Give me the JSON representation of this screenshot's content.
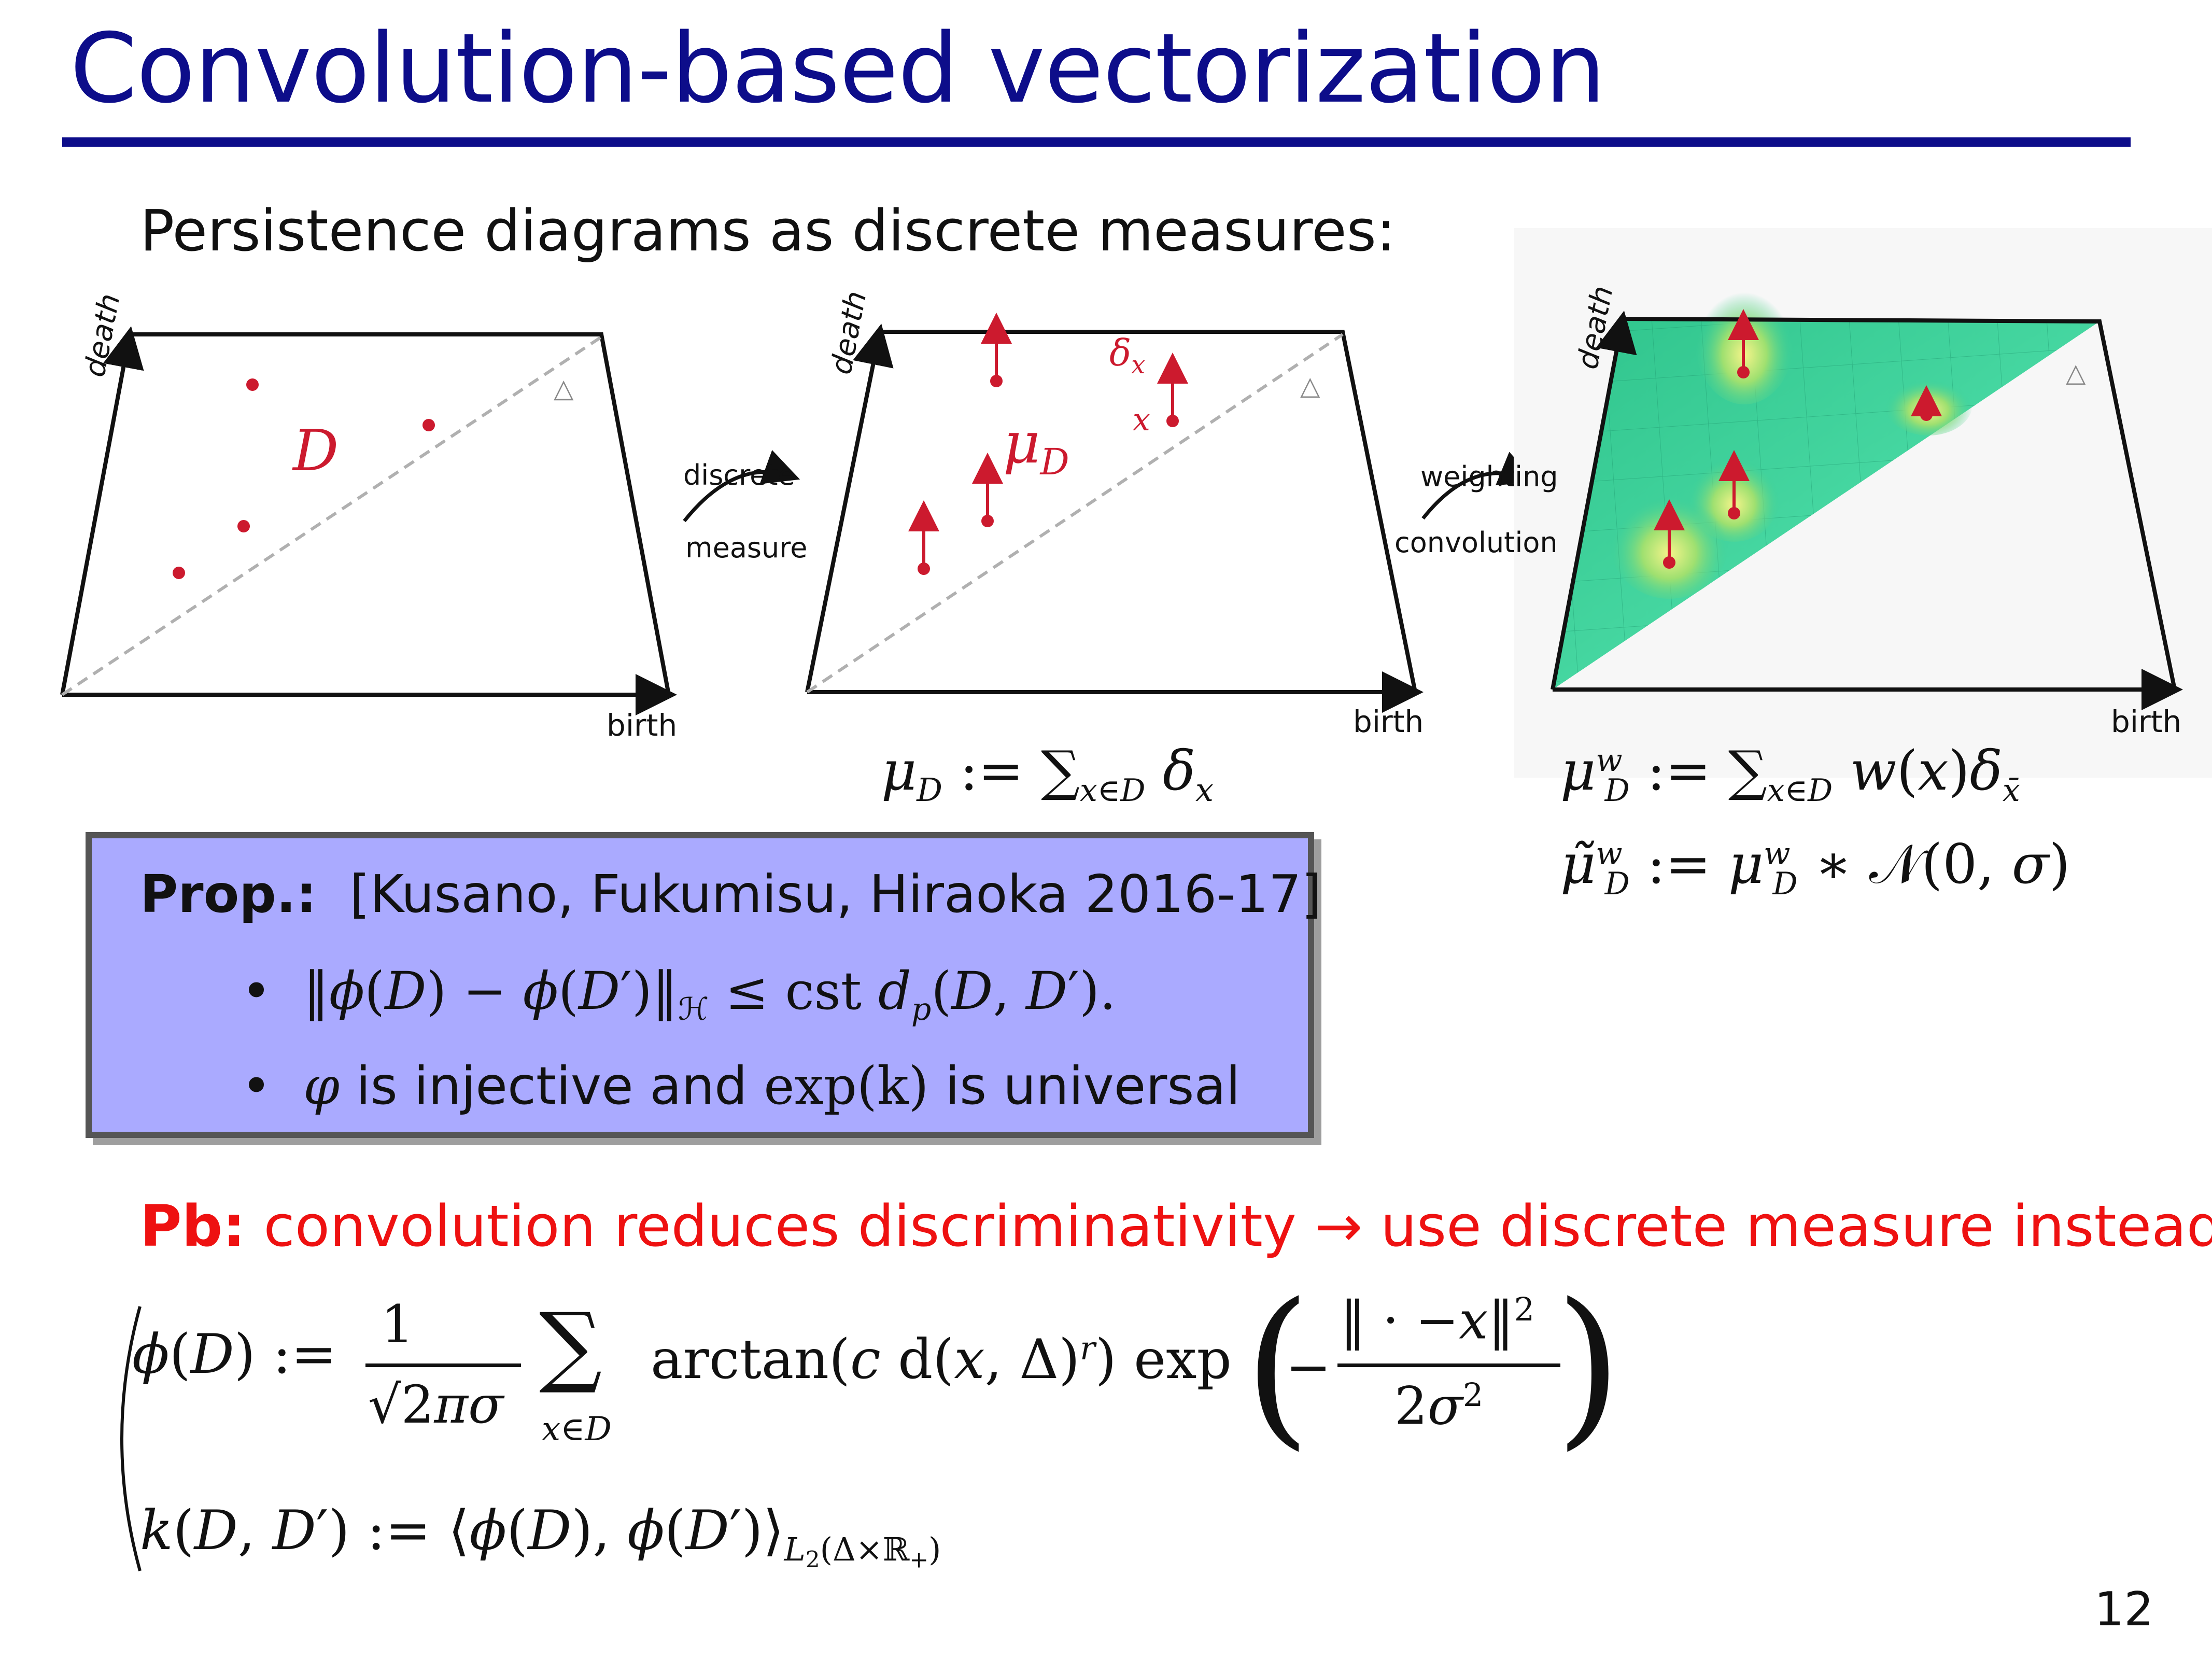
{
  "title": "Convolution-based vectorization",
  "subtitle": "Persistence diagrams as discrete measures:",
  "diagrams": {
    "axis_birth": "birth",
    "axis_death": "death",
    "diag_symbol": "△",
    "d1_label": "D",
    "d2_label": "μ_D",
    "d2_delta": "δ_x",
    "d2_x": "x",
    "arrow1_top": "discrete",
    "arrow1_bottom": "measure",
    "arrow2_top": "weighting",
    "arrow2_bottom": "convolution"
  },
  "formulas": {
    "mu_d": "μ_D := Σ_{x∈D} δ_x",
    "mu_dw": "μ^w_D := Σ_{x∈D} w(x)δ_x̄",
    "mu_tilde": "μ̃^w_D := μ^w_D ∗ 𝒩(0, σ)"
  },
  "prop": {
    "label": "Prop.:",
    "ref": "[Kusano, Fukumisu, Hiraoka 2016-17]",
    "bullet1": "‖φ(D) − φ(D′)‖_ℋ ≤ cst d_p(D, D′).",
    "bullet2_a": "φ",
    "bullet2_b": " is injective and ",
    "bullet2_c": "exp(k)",
    "bullet2_d": " is universal"
  },
  "pb": {
    "label": "Pb:",
    "text": "convolution reduces discriminativity → use discrete measure instead"
  },
  "bottom_formula": {
    "phi": "φ(D) := 1/(√(2π)σ) Σ_{x∈D} arctan(c d(x, Δ)^r) exp(−‖· −x‖²/(2σ²))",
    "kernel": "k(D, D′) := ⟨φ(D), φ(D′)⟩_{L₂(Δ×ℝ₊)}"
  },
  "page_number": "12",
  "colors": {
    "title": "#0d0d8a",
    "points": "#cc1a2e",
    "prop_bg": "#aaaaff",
    "pb": "#ee1111",
    "surface": "#3ccf98"
  }
}
